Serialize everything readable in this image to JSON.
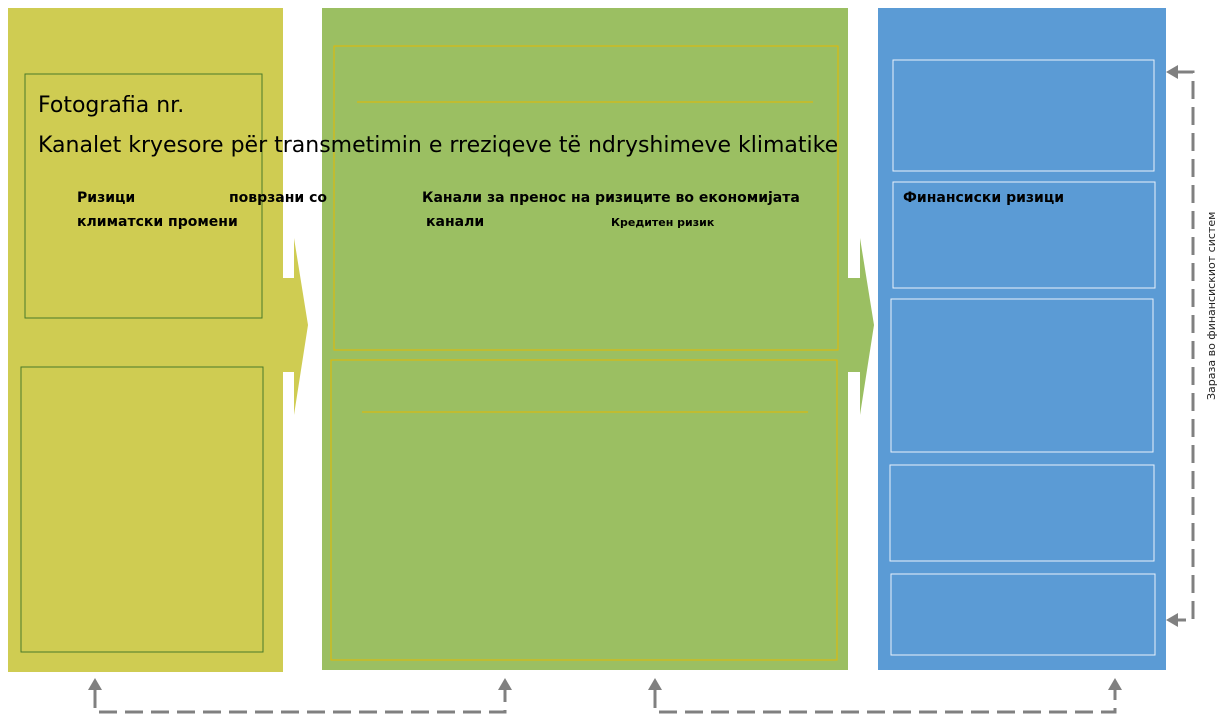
{
  "header": {
    "label": "Fotografia nr.",
    "title": "Kanalet kryesore për transmetimin e rreziqeve të ndryshimeve klimatike"
  },
  "columns": [
    {
      "lines": [
        "Ризици",
        "поврзани со",
        "климатски промени"
      ]
    },
    {
      "lines": [
        "Канали за пренос на ризиците во економијата",
        "канали"
      ],
      "sub": "Кредитен ризик"
    },
    {
      "lines": [
        "Финансиски ризици"
      ]
    }
  ],
  "side_label": "Зараза во финансискиот систем"
}
